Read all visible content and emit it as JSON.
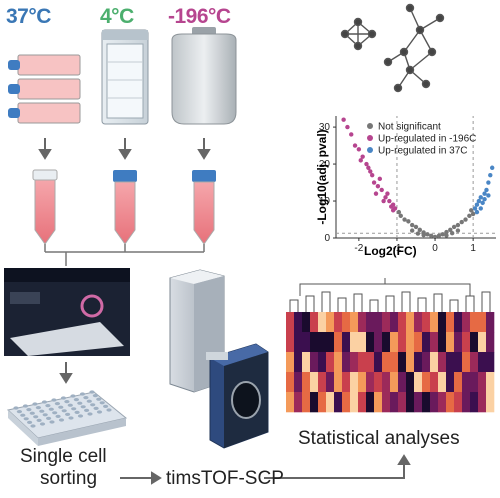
{
  "temperatures": {
    "t1": {
      "label": "37°C",
      "color": "#3a77b5"
    },
    "t2": {
      "label": "4°C",
      "color": "#4caf6e"
    },
    "t3": {
      "label": "-196°C",
      "color": "#b6458f"
    }
  },
  "steps": {
    "sorting_line1": "Single cell",
    "sorting_line2": "sorting",
    "instrument": "timsTOF-SCP",
    "statistics": "Statistical analyses"
  },
  "chart_data": {
    "type": "scatter",
    "xlabel": "Log2(FC)",
    "ylabel": "-Log10(adj. pval)",
    "xticks": [
      "-2",
      "-1",
      "0",
      "1"
    ],
    "yticks": [
      "0",
      "10",
      "20",
      "30"
    ],
    "xlim": [
      -2.6,
      1.6
    ],
    "ylim": [
      0,
      33
    ],
    "legend_position": "top-right",
    "series": [
      {
        "name": "Not significant",
        "color": "#777777",
        "points": [
          [
            -0.9,
            6
          ],
          [
            -0.8,
            5
          ],
          [
            -0.7,
            4.5
          ],
          [
            -0.6,
            3.5
          ],
          [
            -0.5,
            3
          ],
          [
            -0.4,
            2.2
          ],
          [
            -0.3,
            1.5
          ],
          [
            -0.2,
            1
          ],
          [
            -0.1,
            0.6
          ],
          [
            0,
            0.3
          ],
          [
            0.1,
            0.6
          ],
          [
            0.2,
            1
          ],
          [
            0.3,
            1.6
          ],
          [
            0.4,
            2.2
          ],
          [
            0.5,
            3
          ],
          [
            0.6,
            3.5
          ],
          [
            0.7,
            4.3
          ],
          [
            0.8,
            5
          ],
          [
            0.9,
            6
          ],
          [
            1.0,
            6.5
          ],
          [
            -0.6,
            2
          ],
          [
            -0.3,
            0.8
          ],
          [
            0.3,
            0.7
          ],
          [
            0.6,
            2
          ],
          [
            -0.95,
            7
          ],
          [
            0.95,
            7.5
          ],
          [
            -0.45,
            1.2
          ],
          [
            0.45,
            1.3
          ]
        ]
      },
      {
        "name": "Up-regulated in -196C",
        "color": "#b6458f",
        "points": [
          [
            -2.3,
            30
          ],
          [
            -2.2,
            28
          ],
          [
            -2.1,
            25
          ],
          [
            -1.9,
            22
          ],
          [
            -1.8,
            20
          ],
          [
            -1.7,
            18
          ],
          [
            -1.6,
            15
          ],
          [
            -1.5,
            14
          ],
          [
            -1.4,
            13
          ],
          [
            -1.3,
            11
          ],
          [
            -1.2,
            10
          ],
          [
            -1.1,
            9
          ],
          [
            -1.05,
            8
          ],
          [
            -1.15,
            8.5
          ],
          [
            -1.25,
            12
          ],
          [
            -1.35,
            10
          ],
          [
            -1.45,
            16
          ],
          [
            -1.65,
            17
          ],
          [
            -2.0,
            24
          ],
          [
            -2.4,
            32
          ],
          [
            -1.55,
            12
          ],
          [
            -1.75,
            19
          ],
          [
            -1.95,
            21
          ],
          [
            -1.1,
            7.5
          ]
        ]
      },
      {
        "name": "Up-regulated in 37C",
        "color": "#4a86c5",
        "points": [
          [
            1.05,
            8
          ],
          [
            1.1,
            9
          ],
          [
            1.15,
            10
          ],
          [
            1.2,
            11
          ],
          [
            1.25,
            9.5
          ],
          [
            1.3,
            12
          ],
          [
            1.35,
            13
          ],
          [
            1.4,
            15
          ],
          [
            1.45,
            17
          ],
          [
            1.5,
            19
          ],
          [
            1.1,
            7
          ],
          [
            1.2,
            8
          ],
          [
            1.3,
            10.5
          ],
          [
            1.4,
            11.5
          ]
        ]
      }
    ]
  }
}
